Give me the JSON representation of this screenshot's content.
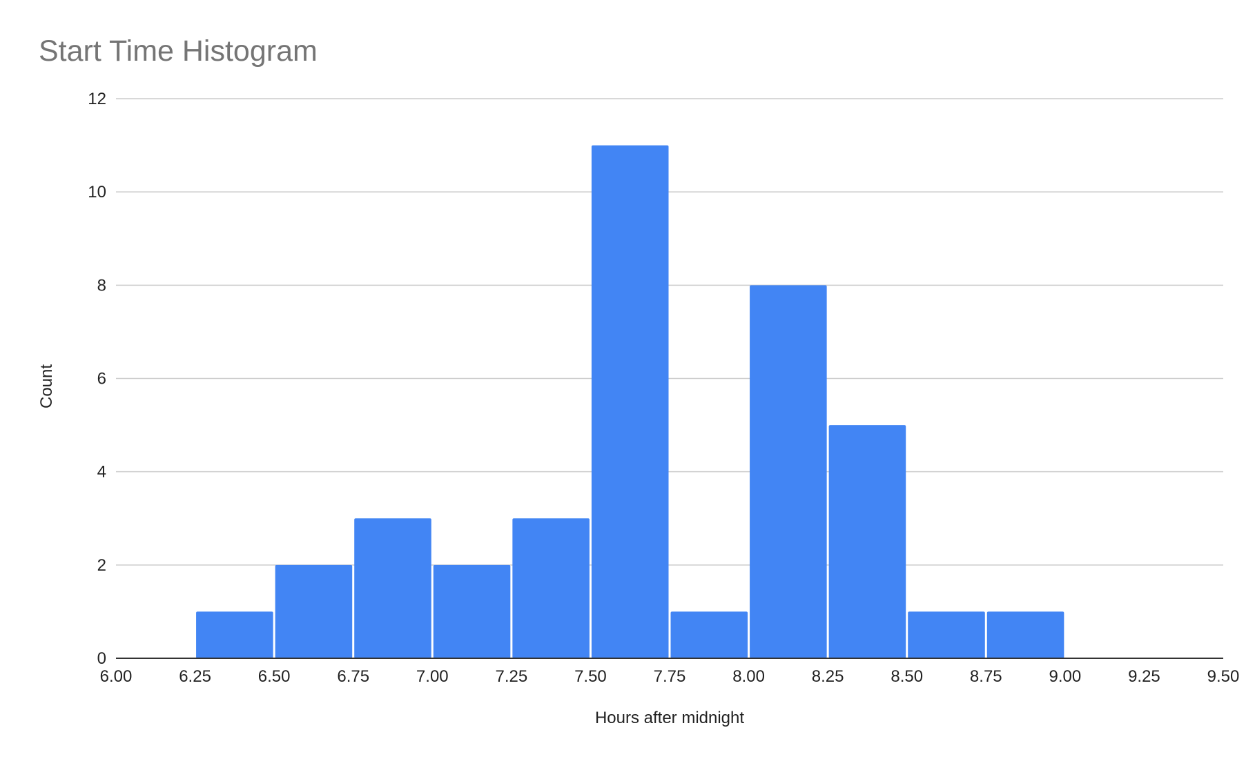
{
  "chart_data": {
    "type": "bar",
    "title": "Start Time Histogram",
    "xlabel": "Hours after midnight",
    "ylabel": "Count",
    "xlim": [
      6.0,
      9.5
    ],
    "ylim": [
      0,
      12
    ],
    "x_ticks": [
      "6.00",
      "6.25",
      "6.50",
      "6.75",
      "7.00",
      "7.25",
      "7.50",
      "7.75",
      "8.00",
      "8.25",
      "8.50",
      "8.75",
      "9.00",
      "9.25",
      "9.50"
    ],
    "y_ticks": [
      "0",
      "2",
      "4",
      "6",
      "8",
      "10",
      "12"
    ],
    "bins": [
      {
        "start": 6.25,
        "end": 6.5,
        "count": 1
      },
      {
        "start": 6.5,
        "end": 6.75,
        "count": 2
      },
      {
        "start": 6.75,
        "end": 7.0,
        "count": 3
      },
      {
        "start": 7.0,
        "end": 7.25,
        "count": 2
      },
      {
        "start": 7.25,
        "end": 7.5,
        "count": 3
      },
      {
        "start": 7.5,
        "end": 7.75,
        "count": 11
      },
      {
        "start": 7.75,
        "end": 8.0,
        "count": 1
      },
      {
        "start": 8.0,
        "end": 8.25,
        "count": 8
      },
      {
        "start": 8.25,
        "end": 8.5,
        "count": 5
      },
      {
        "start": 8.5,
        "end": 8.75,
        "count": 1
      },
      {
        "start": 8.75,
        "end": 9.0,
        "count": 1
      }
    ],
    "grid": true,
    "legend": "none",
    "bar_color": "#4285f4"
  }
}
